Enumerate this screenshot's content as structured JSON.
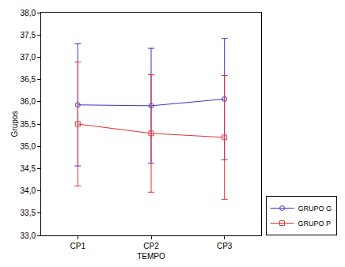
{
  "chart_data": {
    "type": "line",
    "x_label": "TEMPO",
    "y_label": "Grupos",
    "categories": [
      "CP1",
      "CP2",
      "CP3"
    ],
    "series": [
      {
        "name": "GRUPO G",
        "color": "#3535c8",
        "marker": "circle-open",
        "line_style": "solid",
        "values": [
          35.93,
          35.91,
          36.06
        ],
        "error": [
          1.37,
          1.29,
          1.36
        ]
      },
      {
        "name": "GRUPO P",
        "color": "#e03333",
        "marker": "square-open",
        "line_style": "solid",
        "values": [
          35.5,
          35.29,
          35.2
        ],
        "error": [
          1.39,
          1.32,
          1.39
        ]
      }
    ],
    "ylim": [
      33,
      38
    ],
    "yticks": [
      {
        "value": 33,
        "label": "33,0"
      },
      {
        "value": 33.5,
        "label": "33,5"
      },
      {
        "value": 34,
        "label": "34,0"
      },
      {
        "value": 34.5,
        "label": "34,5"
      },
      {
        "value": 35,
        "label": "35,0"
      },
      {
        "value": 35.5,
        "label": "35,5"
      },
      {
        "value": 36,
        "label": "36,0"
      },
      {
        "value": 36.5,
        "label": "36,5"
      },
      {
        "value": 37,
        "label": "37,0"
      },
      {
        "value": 37.5,
        "label": "37,5"
      },
      {
        "value": 38,
        "label": "38,0"
      }
    ],
    "grid": false,
    "legend": "bottom-right"
  }
}
